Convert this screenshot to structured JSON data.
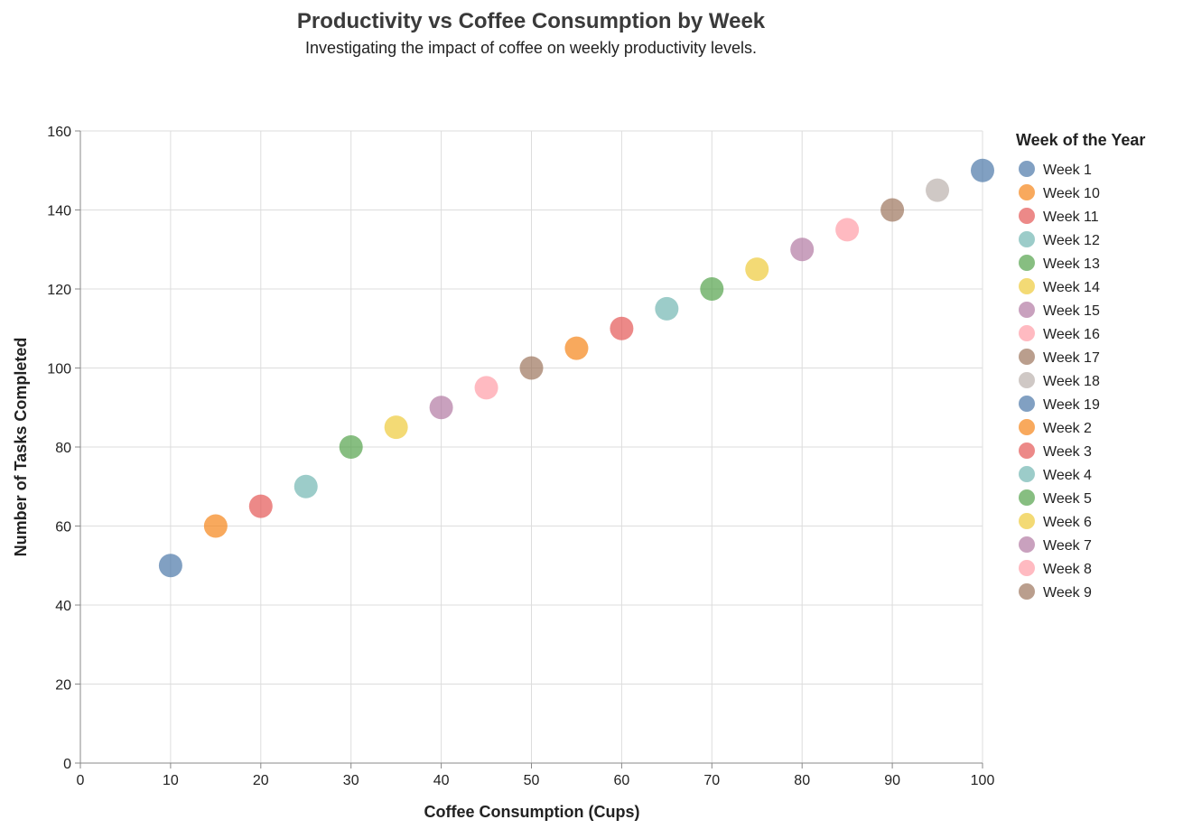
{
  "chart_data": {
    "type": "scatter",
    "title": "Productivity vs Coffee Consumption by Week",
    "subtitle": "Investigating the impact of coffee on weekly productivity levels.",
    "xlabel": "Coffee Consumption (Cups)",
    "ylabel": "Number of Tasks Completed",
    "xlim": [
      0,
      100
    ],
    "ylim": [
      0,
      160
    ],
    "x_ticks": [
      0,
      10,
      20,
      30,
      40,
      50,
      60,
      70,
      80,
      90,
      100
    ],
    "y_ticks": [
      0,
      20,
      40,
      60,
      80,
      100,
      120,
      140,
      160
    ],
    "grid": true,
    "legend": {
      "title": "Week of the Year",
      "placement": "right",
      "entries": [
        {
          "label": "Week 1",
          "color": "#4c78a8"
        },
        {
          "label": "Week 10",
          "color": "#f58518"
        },
        {
          "label": "Week 11",
          "color": "#e45756"
        },
        {
          "label": "Week 12",
          "color": "#72b7b2"
        },
        {
          "label": "Week 13",
          "color": "#54a24b"
        },
        {
          "label": "Week 14",
          "color": "#eeca3b"
        },
        {
          "label": "Week 15",
          "color": "#b279a2"
        },
        {
          "label": "Week 16",
          "color": "#ff9da6"
        },
        {
          "label": "Week 17",
          "color": "#9d755d"
        },
        {
          "label": "Week 18",
          "color": "#bab0ac"
        },
        {
          "label": "Week 19",
          "color": "#4c78a8"
        },
        {
          "label": "Week 2",
          "color": "#f58518"
        },
        {
          "label": "Week 3",
          "color": "#e45756"
        },
        {
          "label": "Week 4",
          "color": "#72b7b2"
        },
        {
          "label": "Week 5",
          "color": "#54a24b"
        },
        {
          "label": "Week 6",
          "color": "#eeca3b"
        },
        {
          "label": "Week 7",
          "color": "#b279a2"
        },
        {
          "label": "Week 8",
          "color": "#ff9da6"
        },
        {
          "label": "Week 9",
          "color": "#9d755d"
        }
      ]
    },
    "points": [
      {
        "week": "Week 1",
        "x": 10,
        "y": 50
      },
      {
        "week": "Week 2",
        "x": 15,
        "y": 60
      },
      {
        "week": "Week 3",
        "x": 20,
        "y": 65
      },
      {
        "week": "Week 4",
        "x": 25,
        "y": 70
      },
      {
        "week": "Week 5",
        "x": 30,
        "y": 80
      },
      {
        "week": "Week 6",
        "x": 35,
        "y": 85
      },
      {
        "week": "Week 7",
        "x": 40,
        "y": 90
      },
      {
        "week": "Week 8",
        "x": 45,
        "y": 95
      },
      {
        "week": "Week 9",
        "x": 50,
        "y": 100
      },
      {
        "week": "Week 10",
        "x": 55,
        "y": 105
      },
      {
        "week": "Week 11",
        "x": 60,
        "y": 110
      },
      {
        "week": "Week 12",
        "x": 65,
        "y": 115
      },
      {
        "week": "Week 13",
        "x": 70,
        "y": 120
      },
      {
        "week": "Week 14",
        "x": 75,
        "y": 125
      },
      {
        "week": "Week 15",
        "x": 80,
        "y": 130
      },
      {
        "week": "Week 16",
        "x": 85,
        "y": 135
      },
      {
        "week": "Week 17",
        "x": 90,
        "y": 140
      },
      {
        "week": "Week 18",
        "x": 95,
        "y": 145
      },
      {
        "week": "Week 19",
        "x": 100,
        "y": 150
      }
    ]
  }
}
